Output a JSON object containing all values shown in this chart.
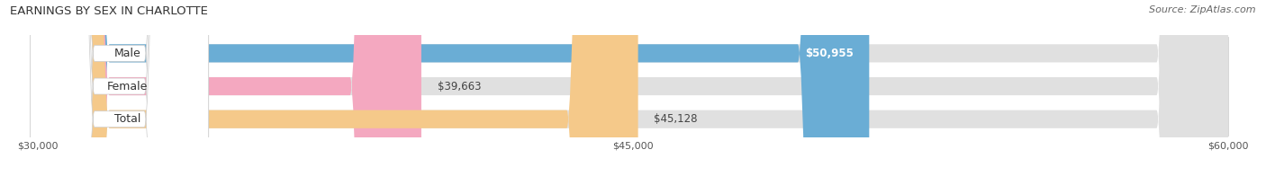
{
  "title": "EARNINGS BY SEX IN CHARLOTTE",
  "source": "Source: ZipAtlas.com",
  "categories": [
    "Male",
    "Female",
    "Total"
  ],
  "values": [
    50955,
    39663,
    45128
  ],
  "bar_colors": [
    "#6aadd5",
    "#f4a8c0",
    "#f5c98a"
  ],
  "bar_bg_color": "#e0e0e0",
  "value_labels": [
    "$50,955",
    "$39,663",
    "$45,128"
  ],
  "value_label_inside": [
    true,
    false,
    false
  ],
  "xmin": 30000,
  "xmax": 60000,
  "xticks": [
    30000,
    45000,
    60000
  ],
  "xtick_labels": [
    "$30,000",
    "$45,000",
    "$60,000"
  ],
  "title_fontsize": 9.5,
  "source_fontsize": 8,
  "bar_label_fontsize": 9,
  "value_fontsize": 8.5,
  "figsize": [
    14.06,
    1.96
  ],
  "dpi": 100,
  "bar_height": 0.55,
  "background_color": "#ffffff"
}
